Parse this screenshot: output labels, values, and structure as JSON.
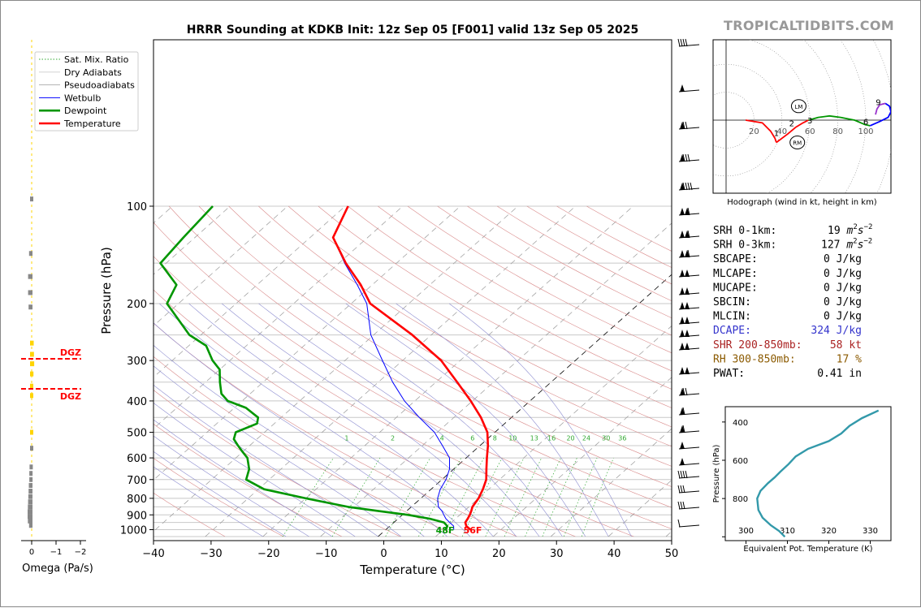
{
  "brand": "TROPICALTIDBITS.COM",
  "chart_data": [
    {
      "type": "line",
      "subtype": "skew-t",
      "title": "HRRR Sounding at KDKB Init: 12z Sep 05 [F001] valid 13z Sep 05 2025",
      "xlabel": "Temperature (°C)",
      "ylabel": "Pressure (hPa)",
      "xlim": [
        -40,
        50
      ],
      "ylim": [
        1050,
        100
      ],
      "yscale": "log",
      "x_ticks": [
        "−40",
        "−30",
        "−20",
        "−10",
        "0",
        "10",
        "20",
        "30",
        "40",
        "50"
      ],
      "y_ticks": [
        "100",
        "200",
        "300",
        "400",
        "500",
        "600",
        "700",
        "800",
        "900",
        "1000"
      ],
      "legend_position": "upper-left",
      "legend": [
        "Sat. Mix. Ratio",
        "Dry Adiabats",
        "Pseudoadiabats",
        "Wetbulb",
        "Dewpoint",
        "Temperature"
      ],
      "series": [
        {
          "name": "Temperature",
          "color": "#ff0000",
          "p": [
            1000,
            975,
            950,
            925,
            900,
            875,
            850,
            800,
            750,
            700,
            650,
            600,
            550,
            500,
            450,
            400,
            350,
            300,
            250,
            200,
            175,
            150,
            125,
            100
          ],
          "t": [
            14.7,
            13.3,
            12.4,
            12.1,
            11.7,
            11.2,
            10.6,
            10.0,
            9.0,
            7.7,
            5.7,
            3.6,
            1.4,
            -1.3,
            -5.3,
            -10.3,
            -16.3,
            -23.3,
            -33.3,
            -46.7,
            -52.0,
            -58.8,
            -66.0,
            -69.5
          ]
        },
        {
          "name": "Dewpoint",
          "color": "#009600",
          "p": [
            1000,
            975,
            950,
            925,
            900,
            875,
            850,
            800,
            750,
            700,
            650,
            600,
            575,
            550,
            525,
            500,
            470,
            450,
            420,
            400,
            380,
            350,
            320,
            300,
            270,
            250,
            200,
            175,
            150,
            125,
            100
          ],
          "t": [
            10.4,
            10.0,
            8.7,
            5.5,
            1.0,
            -5.0,
            -11.0,
            -20.0,
            -29.0,
            -34.0,
            -35.5,
            -38.0,
            -40.0,
            -42.0,
            -44.0,
            -45.0,
            -43.0,
            -44.0,
            -48.0,
            -52.5,
            -55.0,
            -57.5,
            -60.0,
            -63.0,
            -67.0,
            -72.0,
            -82.0,
            -84.0,
            -91.0,
            -92.0,
            -93.0
          ]
        },
        {
          "name": "Wetbulb",
          "color": "#0000ff",
          "p": [
            1000,
            975,
            950,
            925,
            900,
            875,
            850,
            800,
            750,
            700,
            650,
            600,
            550,
            500,
            450,
            400,
            350,
            300,
            250,
            200,
            175,
            150,
            125,
            100
          ],
          "t": [
            11.8,
            11.1,
            9.7,
            8.3,
            7.2,
            6.1,
            4.7,
            2.9,
            1.6,
            0.7,
            -0.7,
            -2.9,
            -6.5,
            -10.5,
            -16.0,
            -21.8,
            -27.5,
            -33.5,
            -40.5,
            -47.3,
            -52.6,
            -59.0,
            -66.0,
            -69.5
          ]
        }
      ],
      "mixing_ratio_labels": [
        "1",
        "2",
        "4",
        "6",
        "8",
        "10",
        "13",
        "16",
        "20",
        "24",
        "30",
        "36"
      ],
      "surface_dewpoint_label": "48F",
      "surface_temp_label": "56F"
    },
    {
      "type": "line",
      "subtype": "hodograph",
      "caption": "Hodograph (wind in kt, height in km)",
      "ring_labels": [
        "20",
        "40",
        "60",
        "80",
        "100"
      ],
      "height_labels": [
        "1",
        "2",
        "3",
        "6",
        "9"
      ],
      "storm_motion_labels": [
        "LM",
        "RM"
      ]
    },
    {
      "type": "line",
      "subtype": "theta-e profile",
      "xlabel": "Equivalent Pot. Temperature (K)",
      "ylabel": "Pressure (hPa)",
      "xlim": [
        295,
        335
      ],
      "ylim": [
        1020,
        320
      ],
      "x_ticks": [
        "300",
        "310",
        "320",
        "330"
      ],
      "y_ticks": [
        "400",
        "600",
        "800"
      ],
      "series": [
        {
          "name": "Theta-E",
          "color": "#3399aa",
          "p": [
            1000,
            970,
            940,
            900,
            860,
            800,
            760,
            720,
            690,
            660,
            620,
            580,
            540,
            500,
            460,
            420,
            380,
            340
          ],
          "theta_e": [
            309.4,
            308.0,
            306.0,
            304.0,
            303.0,
            302.7,
            303.5,
            305.3,
            306.9,
            308.3,
            310.3,
            312.0,
            315.0,
            320.0,
            323.0,
            325.0,
            328.0,
            332.0
          ]
        }
      ]
    },
    {
      "type": "bar",
      "subtype": "omega profile",
      "xlabel": "Omega (Pa/s)",
      "x_ticks": [
        "0",
        "−1",
        "−2"
      ],
      "dgz_label": "DGZ",
      "values": [
        {
          "p": 95,
          "w": 0.0
        },
        {
          "p": 140,
          "w": 0.04
        },
        {
          "p": 165,
          "w": 0.08
        },
        {
          "p": 185,
          "w": 0.08
        },
        {
          "p": 205,
          "w": 0.06
        },
        {
          "p": 265,
          "w": -0.05
        },
        {
          "p": 287,
          "w": -0.06
        },
        {
          "p": 307,
          "w": -0.07
        },
        {
          "p": 330,
          "w": -0.04
        },
        {
          "p": 360,
          "w": -0.03
        },
        {
          "p": 385,
          "w": -0.01
        },
        {
          "p": 500,
          "w": -0.01
        },
        {
          "p": 560,
          "w": 0.0
        },
        {
          "p": 640,
          "w": 0.02
        },
        {
          "p": 670,
          "w": 0.03
        },
        {
          "p": 700,
          "w": 0.03
        },
        {
          "p": 730,
          "w": 0.05
        },
        {
          "p": 760,
          "w": 0.06
        },
        {
          "p": 790,
          "w": 0.07
        },
        {
          "p": 820,
          "w": 0.08
        },
        {
          "p": 850,
          "w": 0.09
        },
        {
          "p": 880,
          "w": 0.1
        },
        {
          "p": 910,
          "w": 0.1
        },
        {
          "p": 940,
          "w": 0.09
        },
        {
          "p": 970,
          "w": 0.04
        }
      ]
    }
  ],
  "indices": [
    {
      "label": "SRH 0-1km:",
      "value": "19",
      "unit": "m2s-2",
      "color": "#000000"
    },
    {
      "label": "SRH 0-3km:",
      "value": "127",
      "unit": "m2s-2",
      "color": "#000000"
    },
    {
      "label": "SBCAPE:",
      "value": "0 J/kg",
      "color": "#000000"
    },
    {
      "label": "MLCAPE:",
      "value": "0 J/kg",
      "color": "#000000"
    },
    {
      "label": "MUCAPE:",
      "value": "0 J/kg",
      "color": "#000000"
    },
    {
      "label": "SBCIN:",
      "value": "0 J/kg",
      "color": "#000000"
    },
    {
      "label": "MLCIN:",
      "value": "0 J/kg",
      "color": "#000000"
    },
    {
      "label": "DCAPE:",
      "value": "324 J/kg",
      "color": "#3333cc"
    },
    {
      "label": "SHR 200-850mb:",
      "value": "58 kt",
      "color": "#aa2222"
    },
    {
      "label": "RH 300-850mb:",
      "value": "17 %",
      "color": "#8b5a00"
    },
    {
      "label": "PWAT:",
      "value": "0.41 in",
      "color": "#000000"
    }
  ]
}
